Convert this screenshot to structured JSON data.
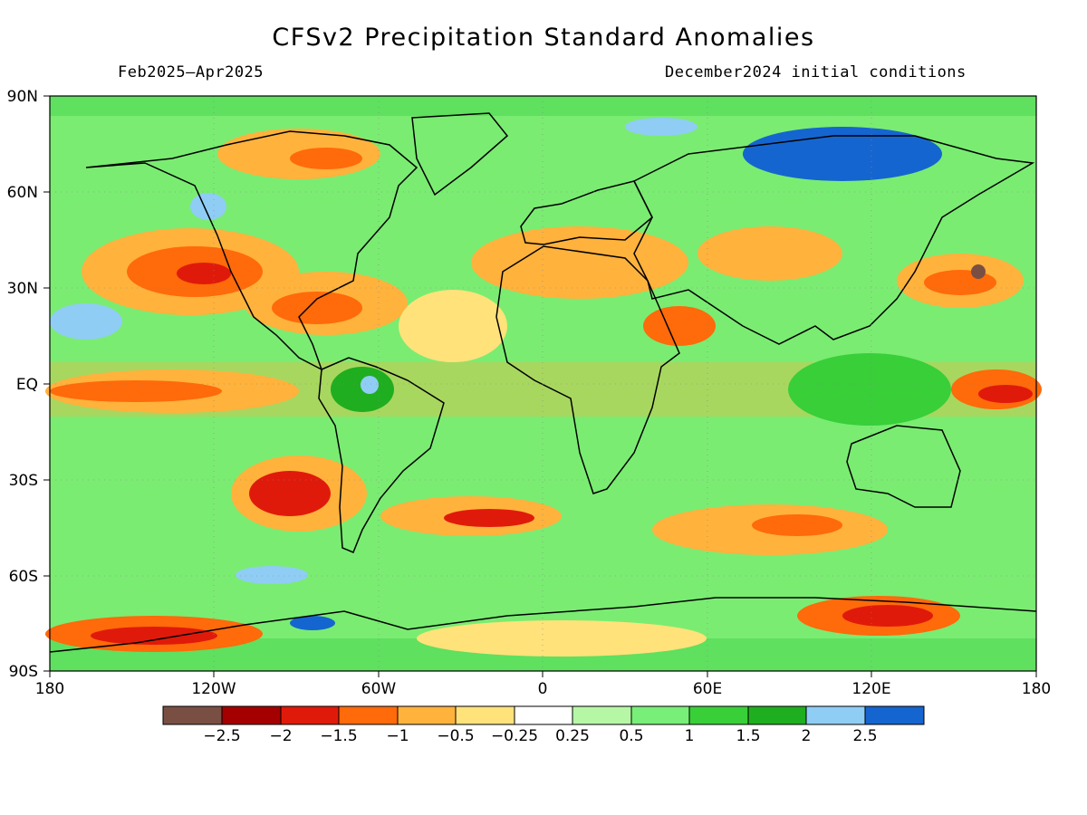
{
  "header": {
    "title": "CFSv2 Precipitation Standard Anomalies",
    "period": "Feb2025–Apr2025",
    "init": "December2024 initial conditions"
  },
  "axes": {
    "lat_labels": [
      "90N",
      "60N",
      "30N",
      "EQ",
      "30S",
      "60S",
      "90S"
    ],
    "lon_labels": [
      "180",
      "120W",
      "60W",
      "0",
      "60E",
      "120E",
      "180"
    ]
  },
  "colorbar": {
    "colors": [
      "#7a4f43",
      "#a50000",
      "#e01a0a",
      "#ff6a0a",
      "#ffb23c",
      "#ffe27a",
      "#ffffff",
      "#b6f7a6",
      "#78ef78",
      "#38cf38",
      "#1fae1f",
      "#8fcdf5",
      "#1565d0"
    ],
    "labels": [
      "−2.5",
      "−2",
      "−1.5",
      "−1",
      "−0.5",
      "−0.25",
      "0.25",
      "0.5",
      "1",
      "1.5",
      "2",
      "2.5"
    ]
  }
}
